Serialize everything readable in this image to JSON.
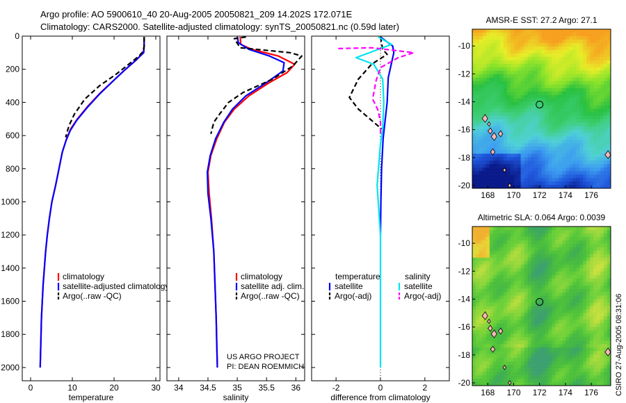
{
  "header": {
    "line1": "Argo profile: AO 5900610_40 20-Aug-2005 20050821_209 14.202S 172.071E",
    "line2": "Climatology: CARS2000. Satellite-adjusted climatology: synTS_20050821.nc (0.59d later)"
  },
  "credit": "CSIRO 27-Aug-2005 08:31:06",
  "project": {
    "line1": "US ARGO PROJECT",
    "line2": "PI: DEAN ROEMMICH"
  },
  "colors": {
    "climatology": "#ff0000",
    "satellite": "#0000ff",
    "argo": "#000000",
    "salinity_satellite": "#00e5ee",
    "salinity_argo": "#ff00ff"
  },
  "chart_data": [
    {
      "id": "temperature",
      "type": "line",
      "xlabel": "temperature",
      "ylabel": "",
      "xlim": [
        -2,
        31
      ],
      "ylim": [
        2080,
        0
      ],
      "y_reversed": true,
      "xticks": [
        0,
        10,
        20,
        30
      ],
      "yticks": [
        0,
        200,
        400,
        600,
        800,
        1000,
        1200,
        1400,
        1600,
        1800,
        2000
      ],
      "legend": {
        "placement": "bottom-left",
        "entries": [
          "climatology",
          "satellite-adjusted climatology",
          "Argo(..raw -QC)"
        ]
      },
      "series": [
        {
          "name": "climatology",
          "color": "#ff0000",
          "dash": "",
          "points": [
            [
              27.2,
              5
            ],
            [
              27.2,
              60
            ],
            [
              27.0,
              100
            ],
            [
              25.5,
              140
            ],
            [
              22.8,
              200
            ],
            [
              20.2,
              260
            ],
            [
              16.8,
              340
            ],
            [
              13.8,
              420
            ],
            [
              11.2,
              500
            ],
            [
              9.6,
              560
            ],
            [
              8.6,
              620
            ],
            [
              7.6,
              700
            ],
            [
              6.8,
              800
            ],
            [
              6.0,
              900
            ],
            [
              5.1,
              1000
            ],
            [
              4.5,
              1100
            ],
            [
              4.0,
              1200
            ],
            [
              3.6,
              1300
            ],
            [
              3.3,
              1400
            ],
            [
              3.0,
              1500
            ],
            [
              2.8,
              1600
            ],
            [
              2.6,
              1700
            ],
            [
              2.5,
              1800
            ],
            [
              2.4,
              1900
            ],
            [
              2.3,
              2000
            ]
          ]
        },
        {
          "name": "satellite-adjusted climatology",
          "color": "#0000ff",
          "dash": "",
          "points": [
            [
              27.2,
              5
            ],
            [
              27.2,
              60
            ],
            [
              27.1,
              100
            ],
            [
              25.0,
              150
            ],
            [
              22.3,
              210
            ],
            [
              19.8,
              270
            ],
            [
              16.5,
              350
            ],
            [
              13.6,
              430
            ],
            [
              11.0,
              510
            ],
            [
              9.5,
              570
            ],
            [
              8.5,
              630
            ],
            [
              7.6,
              700
            ],
            [
              6.8,
              800
            ],
            [
              6.0,
              900
            ],
            [
              5.1,
              1000
            ],
            [
              4.5,
              1100
            ],
            [
              4.0,
              1200
            ],
            [
              3.6,
              1300
            ],
            [
              3.3,
              1400
            ],
            [
              3.0,
              1500
            ],
            [
              2.8,
              1600
            ],
            [
              2.6,
              1700
            ],
            [
              2.5,
              1800
            ],
            [
              2.4,
              1900
            ],
            [
              2.3,
              2000
            ]
          ]
        },
        {
          "name": "Argo(..raw -QC)",
          "color": "#000000",
          "dash": "7,4",
          "points": [
            [
              27.2,
              5
            ],
            [
              27.2,
              60
            ],
            [
              27.0,
              90
            ],
            [
              26.0,
              120
            ],
            [
              23.5,
              170
            ],
            [
              20.5,
              230
            ],
            [
              16.5,
              300
            ],
            [
              13.0,
              380
            ],
            [
              10.5,
              470
            ],
            [
              9.2,
              540
            ],
            [
              8.4,
              610
            ]
          ]
        }
      ]
    },
    {
      "id": "salinity",
      "type": "line",
      "xlabel": "salinity",
      "ylabel": "",
      "xlim": [
        33.8,
        36.15
      ],
      "ylim": [
        2080,
        0
      ],
      "y_reversed": true,
      "xticks": [
        34,
        34.5,
        35,
        35.5,
        36
      ],
      "xticklabels": [
        "34",
        "34.5",
        "35",
        "35.5",
        "36"
      ],
      "legend": {
        "placement": "bottom-right",
        "entries": [
          "climatology",
          "satellite adj. clim.",
          "Argo(..raw -QC)"
        ]
      },
      "series": [
        {
          "name": "climatology",
          "color": "#ff0000",
          "dash": "",
          "points": [
            [
              35.05,
              5
            ],
            [
              35.06,
              50
            ],
            [
              35.25,
              80
            ],
            [
              35.7,
              120
            ],
            [
              35.98,
              170
            ],
            [
              35.85,
              220
            ],
            [
              35.55,
              280
            ],
            [
              35.2,
              360
            ],
            [
              34.95,
              440
            ],
            [
              34.78,
              520
            ],
            [
              34.65,
              620
            ],
            [
              34.55,
              720
            ],
            [
              34.5,
              820
            ],
            [
              34.52,
              950
            ],
            [
              34.56,
              1100
            ],
            [
              34.6,
              1300
            ],
            [
              34.62,
              1500
            ],
            [
              34.64,
              1700
            ],
            [
              34.65,
              1850
            ],
            [
              34.66,
              2000
            ]
          ]
        },
        {
          "name": "satellite adj. clim.",
          "color": "#0000ff",
          "dash": "",
          "points": [
            [
              35.0,
              5
            ],
            [
              35.02,
              40
            ],
            [
              35.2,
              80
            ],
            [
              35.55,
              120
            ],
            [
              35.8,
              160
            ],
            [
              35.78,
              210
            ],
            [
              35.5,
              280
            ],
            [
              35.15,
              360
            ],
            [
              34.92,
              440
            ],
            [
              34.77,
              520
            ],
            [
              34.63,
              620
            ],
            [
              34.54,
              720
            ],
            [
              34.49,
              820
            ],
            [
              34.5,
              950
            ],
            [
              34.55,
              1100
            ],
            [
              34.6,
              1300
            ],
            [
              34.62,
              1500
            ],
            [
              34.64,
              1700
            ],
            [
              34.65,
              1850
            ],
            [
              34.66,
              2000
            ]
          ]
        },
        {
          "name": "Argo(..raw -QC)",
          "color": "#000000",
          "dash": "7,4",
          "points": [
            [
              35.15,
              5
            ],
            [
              34.95,
              15
            ],
            [
              35.05,
              70
            ],
            [
              35.9,
              100
            ],
            [
              36.1,
              120
            ],
            [
              35.95,
              180
            ],
            [
              35.6,
              260
            ],
            [
              35.1,
              340
            ],
            [
              34.85,
              400
            ],
            [
              34.7,
              470
            ],
            [
              34.6,
              520
            ],
            [
              34.55,
              590
            ]
          ]
        }
      ]
    },
    {
      "id": "difference",
      "type": "line",
      "xlabel": "difference from climatology",
      "ylabel": "",
      "xlim": [
        -3.1,
        3.1
      ],
      "ylim": [
        2080,
        0
      ],
      "y_reversed": true,
      "xticks": [
        -2,
        0,
        2
      ],
      "legend": {
        "placement": "bottom",
        "entries": [
          "temperature",
          "satellite",
          "Argo(-adj)",
          "salinity",
          "satellite",
          "Argo(-adj)"
        ]
      },
      "series": [
        {
          "name": "temperature satellite",
          "color": "#0000ff",
          "dash": "",
          "points": [
            [
              0.0,
              5
            ],
            [
              0.55,
              60
            ],
            [
              0.6,
              100
            ],
            [
              0.5,
              160
            ],
            [
              0.35,
              250
            ],
            [
              0.3,
              400
            ],
            [
              0.2,
              520
            ],
            [
              0.12,
              620
            ],
            [
              0.05,
              800
            ],
            [
              0.02,
              1000
            ],
            [
              0.0,
              1200
            ]
          ]
        },
        {
          "name": "temperature Argo(-adj)",
          "color": "#000000",
          "dash": "7,4",
          "points": [
            [
              0.0,
              5
            ],
            [
              0.1,
              80
            ],
            [
              0.3,
              110
            ],
            [
              -0.4,
              170
            ],
            [
              -1.0,
              260
            ],
            [
              -1.4,
              370
            ],
            [
              -1.0,
              440
            ],
            [
              -0.3,
              520
            ],
            [
              0.05,
              560
            ]
          ]
        },
        {
          "name": "salinity satellite",
          "color": "#00e5ee",
          "dash": "",
          "points": [
            [
              -0.1,
              5
            ],
            [
              0.5,
              50
            ],
            [
              -1.1,
              130
            ],
            [
              -0.3,
              170
            ],
            [
              0.1,
              260
            ],
            [
              0.15,
              400
            ],
            [
              0.1,
              560
            ],
            [
              0.0,
              650
            ],
            [
              -0.15,
              900
            ],
            [
              -0.05,
              1100
            ],
            [
              0.0,
              1200
            ],
            [
              0.0,
              2000
            ]
          ]
        },
        {
          "name": "salinity Argo(-adj)",
          "color": "#ff00ff",
          "dash": "7,4",
          "points": [
            [
              -1.9,
              75
            ],
            [
              -0.4,
              70
            ],
            [
              1.5,
              100
            ],
            [
              0.8,
              130
            ],
            [
              0.0,
              190
            ],
            [
              -0.2,
              270
            ],
            [
              -0.35,
              380
            ],
            [
              -0.1,
              450
            ],
            [
              0.0,
              520
            ],
            [
              0.0,
              590
            ]
          ]
        }
      ]
    }
  ],
  "maps": [
    {
      "id": "sst",
      "title": "AMSR-E SST: 27.2 Argo: 27.1",
      "xticks": [
        168,
        170,
        172,
        174,
        176
      ],
      "yticks": [
        -10,
        -12,
        -14,
        -16,
        -18,
        -20
      ],
      "xlim": [
        166.8,
        177.5
      ],
      "ylim": [
        -20.2,
        -8.8
      ],
      "marker": [
        172.0,
        -14.2
      ],
      "colormap": [
        "#0a1a8a",
        "#1e56dc",
        "#3c9cf0",
        "#50d0d8",
        "#3fcf7a",
        "#28c040",
        "#8ce32a",
        "#e8ee28",
        "#f7a020"
      ],
      "islands": [
        [
          168.1,
          -15.6
        ],
        [
          168.2,
          -16.1
        ],
        [
          168.5,
          -16.5
        ],
        [
          169.3,
          -18.9
        ],
        [
          169.0,
          -16.3
        ],
        [
          167.8,
          -15.2
        ],
        [
          169.7,
          -20.0
        ],
        [
          168.4,
          -17.6
        ],
        [
          177.3,
          -17.8
        ]
      ]
    },
    {
      "id": "sla",
      "title": "Altimetric SLA: 0.064 Argo: 0.0039",
      "xticks": [
        168,
        170,
        172,
        174,
        176
      ],
      "yticks": [
        -10,
        -12,
        -14,
        -16,
        -18,
        -20
      ],
      "xlim": [
        166.8,
        177.5
      ],
      "ylim": [
        -20.2,
        -8.8
      ],
      "marker": [
        172.0,
        -14.2
      ],
      "colormap": [
        "#3ca070",
        "#40b050",
        "#4cc03c",
        "#6ad03a",
        "#9ad83c",
        "#c8e040",
        "#e8d838",
        "#f0b030"
      ],
      "islands": [
        [
          168.1,
          -15.6
        ],
        [
          168.2,
          -16.1
        ],
        [
          168.5,
          -16.5
        ],
        [
          169.3,
          -18.9
        ],
        [
          169.0,
          -16.3
        ],
        [
          167.8,
          -15.2
        ],
        [
          169.7,
          -20.0
        ],
        [
          168.4,
          -17.6
        ],
        [
          177.3,
          -17.8
        ]
      ]
    }
  ]
}
